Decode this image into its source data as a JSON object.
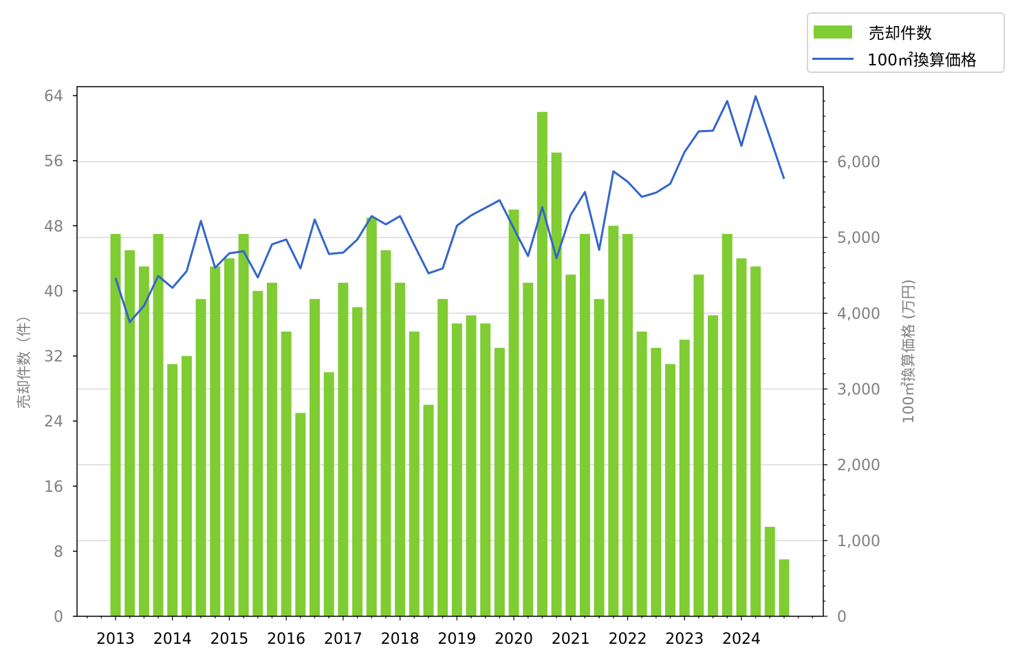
{
  "chart_data": {
    "type": "bar",
    "title": "",
    "legend": [
      "売却件数",
      "100㎡換算価格"
    ],
    "legend_placement": "top-right",
    "ylabel": "売却件数（件）",
    "y2label": "100㎡換算価格 (万円)",
    "xlabel": "",
    "x_tick_labels": [
      "2013",
      "2014",
      "2015",
      "2016",
      "2017",
      "2018",
      "2019",
      "2020",
      "2021",
      "2022",
      "2023",
      "2024"
    ],
    "y_ticks": [
      0,
      8,
      16,
      24,
      32,
      40,
      48,
      56,
      64
    ],
    "y2_ticks": [
      0,
      1000,
      2000,
      3000,
      4000,
      5000,
      6000
    ],
    "y2_tick_labels": [
      "0",
      "1,000",
      "2,000",
      "3,000",
      "4,000",
      "5,000",
      "6,000"
    ],
    "ylim": [
      0,
      65.1
    ],
    "y2lim": [
      0,
      6990
    ],
    "grid": "horizontal (right axis)",
    "series": [
      {
        "name": "売却件数",
        "type": "bar",
        "axis": "left",
        "color": "#80cc33",
        "values": [
          47,
          45,
          43,
          47,
          31,
          32,
          39,
          43,
          44,
          47,
          40,
          41,
          35,
          25,
          39,
          30,
          41,
          38,
          49,
          45,
          41,
          35,
          26,
          39,
          36,
          37,
          36,
          33,
          50,
          41,
          62,
          57,
          42,
          47,
          39,
          48,
          47,
          35,
          33,
          31,
          34,
          42,
          37,
          47,
          44,
          43,
          11,
          7
        ]
      },
      {
        "name": "100㎡換算価格",
        "type": "line",
        "axis": "right",
        "color": "#3366cc",
        "values": [
          4464,
          3882,
          4100,
          4491,
          4336,
          4555,
          5218,
          4600,
          4791,
          4818,
          4473,
          4909,
          4973,
          4591,
          5236,
          4782,
          4800,
          4973,
          5282,
          5173,
          5282,
          4900,
          4527,
          4591,
          5155,
          5291,
          5391,
          5491,
          5118,
          4755,
          5400,
          4727,
          5300,
          5600,
          4836,
          5873,
          5736,
          5536,
          5591,
          5709,
          6127,
          6400,
          6409,
          6800,
          6209,
          6864,
          6327,
          5773
        ]
      }
    ]
  }
}
